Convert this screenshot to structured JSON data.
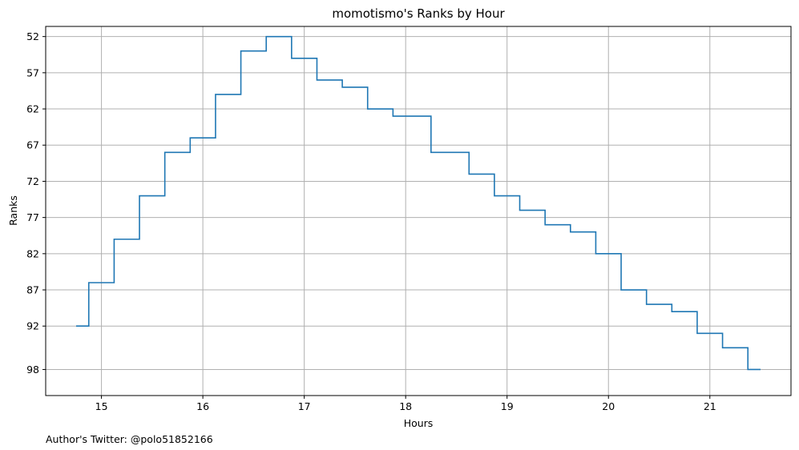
{
  "chart_data": {
    "type": "line",
    "step": "post",
    "title": "momotismo's Ranks by Hour",
    "xlabel": "Hours",
    "ylabel": "Ranks",
    "xlim": [
      14.45,
      21.8
    ],
    "ylim": [
      101.6,
      50.6
    ],
    "y_inverted": true,
    "grid": true,
    "line_color": "#1f77b4",
    "xticks": [
      15,
      16,
      17,
      18,
      19,
      20,
      21
    ],
    "yticks": [
      52,
      57,
      62,
      67,
      72,
      77,
      82,
      87,
      92,
      98
    ],
    "series": [
      {
        "x": [
          14.75,
          14.875,
          15.125,
          15.375,
          15.625,
          15.875,
          16.125,
          16.375,
          16.625,
          16.875,
          17.125,
          17.375,
          17.625,
          17.875,
          18.25,
          18.625,
          18.875,
          19.125,
          19.375,
          19.625,
          19.875,
          20.125,
          20.375,
          20.625,
          20.875,
          21.125,
          21.375,
          21.5
        ],
        "y": [
          92,
          86,
          80,
          74,
          68,
          66,
          60,
          54,
          52,
          55,
          58,
          59,
          62,
          63,
          68,
          71,
          74,
          76,
          78,
          79,
          82,
          87,
          89,
          90,
          93,
          95,
          98,
          98
        ]
      }
    ]
  },
  "footer": {
    "author_note": "Author's Twitter: @polo51852166"
  }
}
